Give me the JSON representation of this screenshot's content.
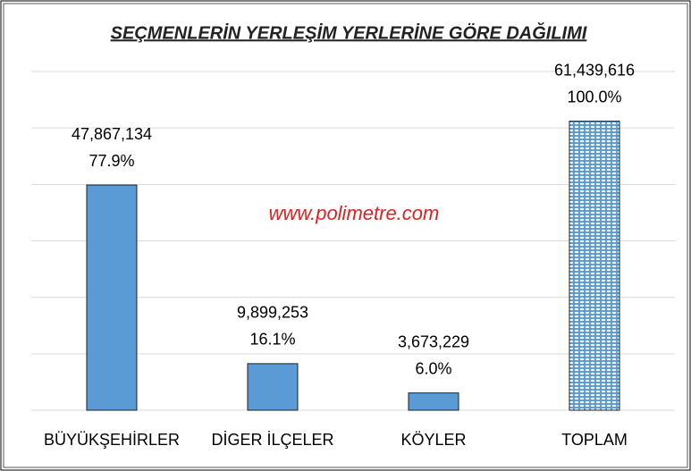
{
  "chart_data": {
    "type": "bar",
    "title": "SEÇMENLERİN YERLEŞİM YERLERİNE GÖRE DAĞILIMI",
    "annotation": "www.polimetre.com",
    "categories": [
      "BÜYÜKŞEHİRLER",
      "DİGER İLÇELER",
      "KÖYLER",
      "TOPLAM"
    ],
    "values": [
      47867134,
      9899253,
      3673229,
      61439616
    ],
    "value_labels": [
      "47,867,134",
      "9,899,253",
      "3,673,229",
      "61,439,616"
    ],
    "percentages": [
      77.9,
      16.1,
      6.0,
      100.0
    ],
    "percentage_labels": [
      "77.9%",
      "16.1%",
      "6.0%",
      "100.0%"
    ],
    "color": "#5b9bd5",
    "patterns": [
      null,
      null,
      null,
      "dotted"
    ],
    "ylim": [
      0,
      72000000
    ],
    "yticks": [
      0,
      12000000,
      24000000,
      36000000,
      48000000,
      60000000,
      72000000
    ],
    "grid": true
  }
}
